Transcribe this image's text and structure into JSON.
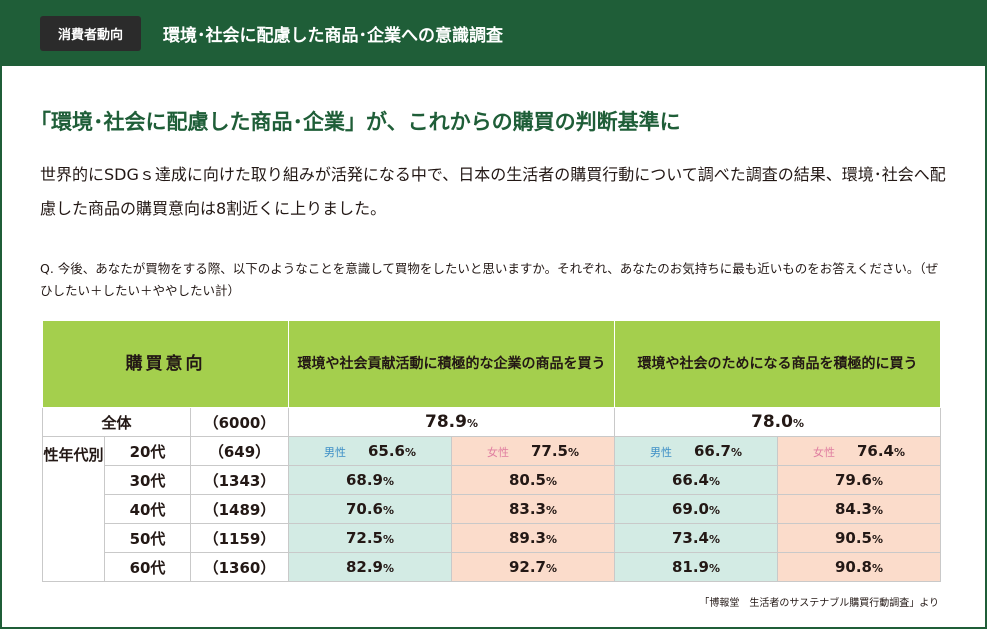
{
  "header": {
    "badge": "消費者動向",
    "title": "環境･社会に配慮した商品･企業への意識調査"
  },
  "headline": "「環境･社会に配慮した商品･企業」が、これからの購買の判断基準に",
  "lead": "世界的にSDGｓ達成に向けた取り組みが活発になる中で、日本の生活者の購買行動について調べた調査の結果、環境･社会へ配慮した商品の購買意向は8割近くに上りました。",
  "question": "Q. 今後、あなたが買物をする際、以下のようなことを意識して買物をしたいと思いますか。それぞれ、あなたのお気持ちに最も近いものをお答えください。（ぜひしたい＋したい＋ややしたい計）",
  "table": {
    "col_label": "購買意向",
    "col_a": "環境や社会貢献活動に積極的な企業の商品を買う",
    "col_b": "環境や社会のためになる商品を積極的に買う",
    "group_label": "性年代別",
    "male": "男性",
    "female": "女性",
    "pct": "%",
    "total": {
      "label": "全体",
      "n": "（6000）",
      "a": "78.9",
      "b": "78.0"
    },
    "rows": [
      {
        "age": "20代",
        "n": "（649）",
        "am": "65.6",
        "af": "77.5",
        "bm": "66.7",
        "bf": "76.4"
      },
      {
        "age": "30代",
        "n": "（1343）",
        "am": "68.9",
        "af": "80.5",
        "bm": "66.4",
        "bf": "79.6"
      },
      {
        "age": "40代",
        "n": "（1489）",
        "am": "70.6",
        "af": "83.3",
        "bm": "69.0",
        "bf": "84.3"
      },
      {
        "age": "50代",
        "n": "（1159）",
        "am": "72.5",
        "af": "89.3",
        "bm": "73.4",
        "bf": "90.5"
      },
      {
        "age": "60代",
        "n": "（1360）",
        "am": "82.9",
        "af": "92.7",
        "bm": "81.9",
        "bf": "90.8"
      }
    ]
  },
  "source": "「博報堂　生活者のサステナブル購買行動調査」より"
}
